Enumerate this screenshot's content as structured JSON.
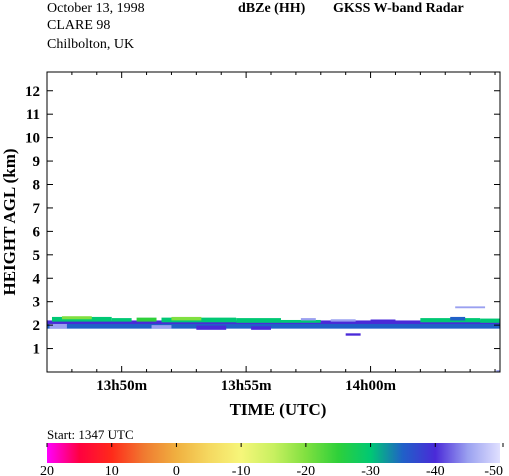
{
  "header": {
    "date": "October 13, 1998",
    "campaign": "CLARE 98",
    "location": "Chilbolton, UK",
    "product": "dBZe (HH)",
    "instrument": "GKSS  W-band Radar"
  },
  "start_label": "Start: 1347 UTC",
  "chart_data": {
    "type": "heatmap",
    "title": "dBZe (HH)   GKSS  W-band Radar",
    "xlabel": "TIME (UTC)",
    "ylabel": "HEIGHT AGL (km)",
    "x_range_minutes_after_1347": [
      0,
      18.2
    ],
    "x_ticks": [
      {
        "minutes": 3,
        "label": "13h50m"
      },
      {
        "minutes": 8,
        "label": "13h55m"
      },
      {
        "minutes": 13,
        "label": "14h00m"
      }
    ],
    "ylim_km": [
      0,
      12.8
    ],
    "y_ticks": [
      1,
      2,
      3,
      4,
      5,
      6,
      7,
      8,
      9,
      10,
      11,
      12
    ],
    "colorbar": {
      "label_values": [
        "20",
        "10",
        "0",
        "-10",
        "-20",
        "-30",
        "-40",
        "-50"
      ],
      "stops": [
        {
          "value": 20,
          "color": "#ff00ff"
        },
        {
          "value": 15,
          "color": "#ff0040"
        },
        {
          "value": 10,
          "color": "#ff2a1a"
        },
        {
          "value": 5,
          "color": "#f07a30"
        },
        {
          "value": 0,
          "color": "#f0b040"
        },
        {
          "value": -5,
          "color": "#f5d860"
        },
        {
          "value": -10,
          "color": "#f6f67a"
        },
        {
          "value": -15,
          "color": "#c8f060"
        },
        {
          "value": -20,
          "color": "#80e040"
        },
        {
          "value": -25,
          "color": "#2ed03a"
        },
        {
          "value": -30,
          "color": "#00c874"
        },
        {
          "value": -35,
          "color": "#2060c8"
        },
        {
          "value": -40,
          "color": "#4a2ad8"
        },
        {
          "value": -45,
          "color": "#9aa0f0"
        },
        {
          "value": -50,
          "color": "#e0e0ff"
        }
      ]
    },
    "echo_layers": [
      {
        "t0": 0,
        "t1": 18.2,
        "h0": 1.85,
        "h1": 2.15,
        "dbz": -35
      },
      {
        "t0": 0,
        "t1": 18.2,
        "h0": 2.05,
        "h1": 2.2,
        "dbz": -40
      },
      {
        "t0": 0.2,
        "t1": 2.6,
        "h0": 2.15,
        "h1": 2.35,
        "dbz": -28
      },
      {
        "t0": 0.6,
        "t1": 1.8,
        "h0": 2.25,
        "h1": 2.38,
        "dbz": -22
      },
      {
        "t0": 2.6,
        "t1": 3.4,
        "h0": 2.15,
        "h1": 2.3,
        "dbz": -30
      },
      {
        "t0": 3.6,
        "t1": 4.4,
        "h0": 2.15,
        "h1": 2.32,
        "dbz": -26
      },
      {
        "t0": 4.6,
        "t1": 7.6,
        "h0": 2.12,
        "h1": 2.32,
        "dbz": -28
      },
      {
        "t0": 5.0,
        "t1": 6.2,
        "h0": 2.2,
        "h1": 2.35,
        "dbz": -22
      },
      {
        "t0": 7.6,
        "t1": 9.4,
        "h0": 2.1,
        "h1": 2.3,
        "dbz": -29
      },
      {
        "t0": 9.4,
        "t1": 11.0,
        "h0": 2.1,
        "h1": 2.22,
        "dbz": -31
      },
      {
        "t0": 15.0,
        "t1": 17.4,
        "h0": 2.12,
        "h1": 2.3,
        "dbz": -28
      },
      {
        "t0": 16.2,
        "t1": 16.8,
        "h0": 2.2,
        "h1": 2.35,
        "dbz": -36
      },
      {
        "t0": 17.4,
        "t1": 18.2,
        "h0": 2.1,
        "h1": 2.28,
        "dbz": -30
      },
      {
        "t0": 0.1,
        "t1": 0.8,
        "h0": 1.85,
        "h1": 2.05,
        "dbz": -45
      },
      {
        "t0": 4.2,
        "t1": 5.0,
        "h0": 1.85,
        "h1": 2.0,
        "dbz": -45
      },
      {
        "t0": 6.0,
        "t1": 7.2,
        "h0": 1.8,
        "h1": 1.98,
        "dbz": -42
      },
      {
        "t0": 8.2,
        "t1": 9.0,
        "h0": 1.8,
        "h1": 1.95,
        "dbz": -40
      },
      {
        "t0": 10.2,
        "t1": 10.8,
        "h0": 2.2,
        "h1": 2.3,
        "dbz": -46
      },
      {
        "t0": 11.4,
        "t1": 12.4,
        "h0": 2.15,
        "h1": 2.25,
        "dbz": -44
      },
      {
        "t0": 13.0,
        "t1": 14.0,
        "h0": 2.15,
        "h1": 2.24,
        "dbz": -42
      },
      {
        "t0": 12.0,
        "t1": 12.6,
        "h0": 1.55,
        "h1": 1.65,
        "dbz": -38
      },
      {
        "t0": 16.4,
        "t1": 17.6,
        "h0": 2.72,
        "h1": 2.8,
        "dbz": -45
      },
      {
        "t0": 18.05,
        "t1": 18.2,
        "h0": 0,
        "h1": 0.08,
        "dbz": -44
      }
    ]
  }
}
